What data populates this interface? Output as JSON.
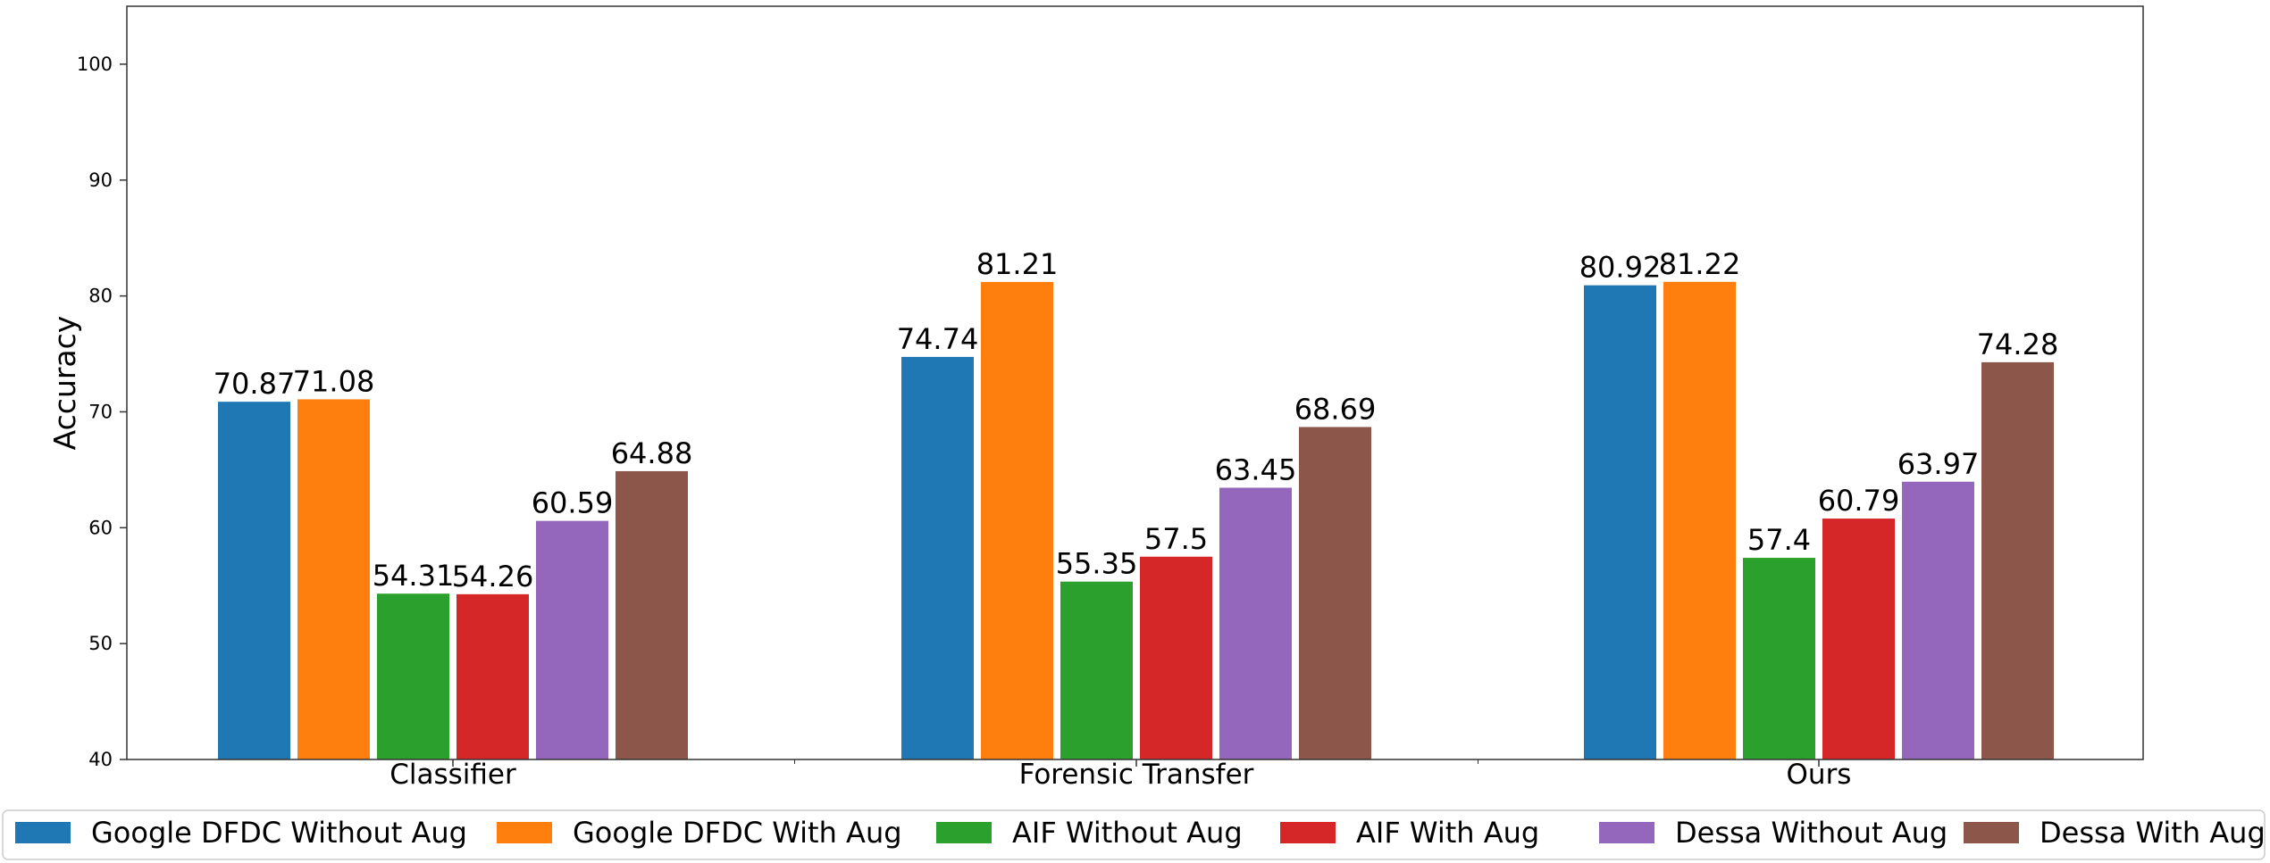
{
  "chart_data": {
    "type": "bar",
    "title": "",
    "xlabel": "",
    "ylabel": "Accuracy",
    "categories": [
      "Classifier",
      "Forensic Transfer",
      "Ours"
    ],
    "ylim": [
      40,
      105
    ],
    "yticks": [
      40,
      50,
      60,
      70,
      80,
      90,
      100
    ],
    "grid": false,
    "legend_placement": "bottom",
    "series": [
      {
        "name": "Google DFDC Without Aug",
        "color": "#1f77b4",
        "values": [
          70.87,
          74.74,
          80.92
        ]
      },
      {
        "name": "Google DFDC With Aug",
        "color": "#ff7f0e",
        "values": [
          71.08,
          81.21,
          81.22
        ]
      },
      {
        "name": "AIF Without Aug",
        "color": "#2ca02c",
        "values": [
          54.31,
          55.35,
          57.4
        ]
      },
      {
        "name": "AIF With Aug",
        "color": "#d62728",
        "values": [
          54.26,
          57.5,
          60.79
        ]
      },
      {
        "name": "Dessa Without Aug",
        "color": "#9467bd",
        "values": [
          60.59,
          63.45,
          63.97
        ]
      },
      {
        "name": "Dessa With Aug",
        "color": "#8c564b",
        "values": [
          64.88,
          68.69,
          74.28
        ]
      }
    ]
  }
}
